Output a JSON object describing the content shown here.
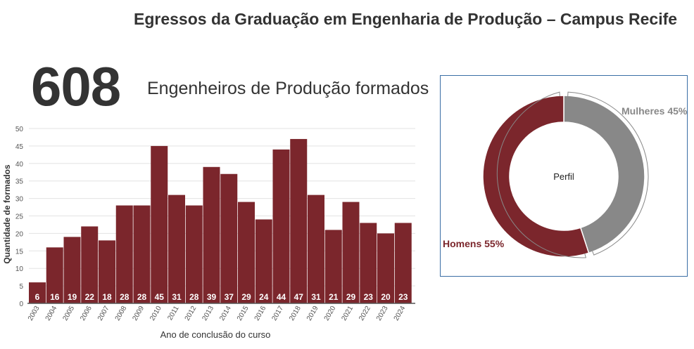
{
  "header": {
    "title": "Egressos da Graduação em Engenharia de Produção – Campus Recife"
  },
  "summary": {
    "total": "608",
    "caption": "Engenheiros de Produção formados"
  },
  "colors": {
    "bar": "#7b262c",
    "men": "#7b262c",
    "women": "#888888",
    "text": "#333333"
  },
  "chart_data": [
    {
      "type": "bar",
      "categories": [
        "2003",
        "2004",
        "2005",
        "2006",
        "2007",
        "2008",
        "2009",
        "2010",
        "2011",
        "2012",
        "2013",
        "2014",
        "2015",
        "2016",
        "2017",
        "2018",
        "2019",
        "2020",
        "2021",
        "2022",
        "2023",
        "2024"
      ],
      "values": [
        6,
        16,
        19,
        22,
        18,
        28,
        28,
        45,
        31,
        28,
        39,
        37,
        29,
        24,
        44,
        47,
        31,
        21,
        29,
        23,
        20,
        23
      ],
      "xlabel": "Ano de conclusão do curso",
      "ylabel": "Quantidade de formados",
      "ylim": [
        0,
        50
      ],
      "yticks": [
        0,
        5,
        10,
        15,
        20,
        25,
        30,
        35,
        40,
        45,
        50
      ],
      "grid": true,
      "data_labels": true
    },
    {
      "type": "pie",
      "center_label": "Perfil",
      "slices": [
        {
          "name": "Mulheres",
          "value": 45,
          "label": "Mulheres 45%"
        },
        {
          "name": "Homens",
          "value": 55,
          "label": "Homens 55%"
        }
      ]
    }
  ]
}
